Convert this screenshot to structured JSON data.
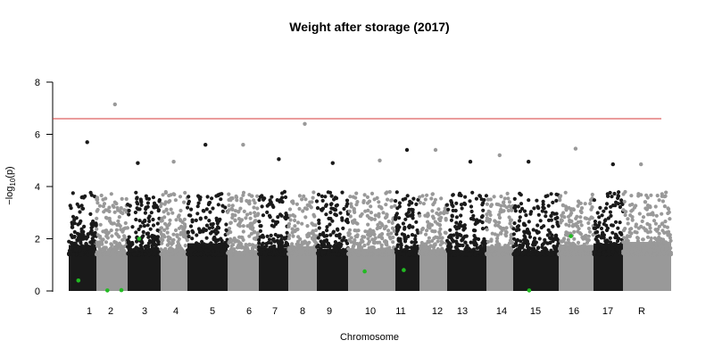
{
  "chart_data": {
    "type": "scatter",
    "subtype": "manhattan",
    "title": "Weight after storage (2017)",
    "xlabel": "Chromosome",
    "ylabel": "-log10(p)",
    "ylabel_parts": {
      "prefix": "−log",
      "subscript": "10",
      "suffix": "(p)"
    },
    "ylim": [
      0,
      8
    ],
    "yticks": [
      "0",
      "2",
      "4",
      "6",
      "8"
    ],
    "grid": false,
    "legend": "none",
    "threshold": {
      "value": 6.6,
      "color": "#d43a3a"
    },
    "colors": {
      "odd": "#1a1a1a",
      "even": "#999999",
      "highlight": "#22bb22"
    },
    "chromosomes": [
      {
        "label": "1",
        "top_value": 5.7
      },
      {
        "label": "2",
        "top_value": 7.15
      },
      {
        "label": "3",
        "top_value": 4.9
      },
      {
        "label": "4",
        "top_value": 4.95
      },
      {
        "label": "5",
        "top_value": 5.6
      },
      {
        "label": "6",
        "top_value": 5.6
      },
      {
        "label": "7",
        "top_value": 5.05
      },
      {
        "label": "8",
        "top_value": 6.4
      },
      {
        "label": "9",
        "top_value": 4.9
      },
      {
        "label": "10",
        "top_value": 5.0
      },
      {
        "label": "11",
        "top_value": 5.4
      },
      {
        "label": "12",
        "top_value": 5.4
      },
      {
        "label": "13",
        "top_value": 4.95
      },
      {
        "label": "14",
        "top_value": 5.2
      },
      {
        "label": "15",
        "top_value": 4.95
      },
      {
        "label": "16",
        "top_value": 5.45
      },
      {
        "label": "17",
        "top_value": 4.85
      },
      {
        "label": "R",
        "top_value": 4.85
      }
    ],
    "highlighted_points": [
      {
        "chromosome": "1",
        "value": 0.4
      },
      {
        "chromosome": "2",
        "value": 0.02
      },
      {
        "chromosome": "2",
        "value": 0.03
      },
      {
        "chromosome": "3",
        "value": 2.0
      },
      {
        "chromosome": "10",
        "value": 0.75
      },
      {
        "chromosome": "11",
        "value": 0.8
      },
      {
        "chromosome": "15",
        "value": 0.02
      },
      {
        "chromosome": "16",
        "value": 2.1
      }
    ]
  }
}
